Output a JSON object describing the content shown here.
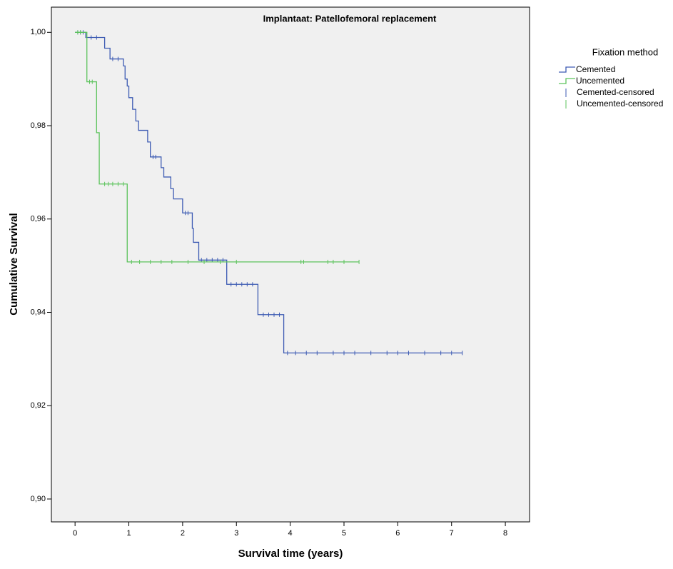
{
  "chart_data": {
    "type": "step",
    "title": "Implantaat: Patellofemoral replacement",
    "x_label": "Survival time (years)",
    "y_label": "Cumulative Survival",
    "legend_title": "Fixation method",
    "xlim": [
      -0.44,
      8.45
    ],
    "xticks": [
      0,
      1,
      2,
      3,
      4,
      5,
      6,
      7,
      8
    ],
    "ylim": [
      0.8951,
      1.0054
    ],
    "yticks": [
      {
        "value": 0.9,
        "label": "0,90"
      },
      {
        "value": 0.92,
        "label": "0,92"
      },
      {
        "value": 0.94,
        "label": "0,94"
      },
      {
        "value": 0.96,
        "label": "0,96"
      },
      {
        "value": 0.98,
        "label": "0,98"
      },
      {
        "value": 1.0,
        "label": "1,00"
      }
    ],
    "series": [
      {
        "name": "Cemented",
        "color": "#3d5bb3",
        "x": [
          0,
          0.2,
          0.55,
          0.65,
          0.9,
          0.93,
          0.97,
          1.0,
          1.07,
          1.13,
          1.18,
          1.35,
          1.4,
          1.6,
          1.65,
          1.78,
          1.83,
          2.0,
          2.18,
          2.2,
          2.3,
          2.82,
          3.4,
          3.88,
          7.2
        ],
        "values": [
          1.0,
          0.9989,
          0.9966,
          0.9943,
          0.9928,
          0.99,
          0.9885,
          0.986,
          0.9835,
          0.981,
          0.979,
          0.9765,
          0.9733,
          0.971,
          0.969,
          0.9665,
          0.9643,
          0.9613,
          0.958,
          0.955,
          0.9512,
          0.946,
          0.9395,
          0.9313,
          0.9313
        ],
        "censored": {
          "name": "Cemented-censored",
          "x": [
            0.05,
            0.1,
            0.15,
            0.3,
            0.4,
            0.7,
            0.8,
            1.45,
            1.5,
            2.05,
            2.1,
            2.35,
            2.45,
            2.55,
            2.65,
            2.75,
            2.9,
            3.0,
            3.1,
            3.2,
            3.3,
            3.5,
            3.6,
            3.7,
            3.8,
            3.95,
            4.1,
            4.3,
            4.5,
            4.8,
            5.0,
            5.2,
            5.5,
            5.8,
            6.0,
            6.2,
            6.5,
            6.8,
            7.0,
            7.2
          ],
          "values": [
            1.0,
            1.0,
            1.0,
            0.9989,
            0.9989,
            0.9943,
            0.9943,
            0.9733,
            0.9733,
            0.9613,
            0.9613,
            0.9512,
            0.9512,
            0.9512,
            0.9512,
            0.9512,
            0.946,
            0.946,
            0.946,
            0.946,
            0.946,
            0.9395,
            0.9395,
            0.9395,
            0.9395,
            0.9313,
            0.9313,
            0.9313,
            0.9313,
            0.9313,
            0.9313,
            0.9313,
            0.9313,
            0.9313,
            0.9313,
            0.9313,
            0.9313,
            0.9313,
            0.9313,
            0.9313
          ]
        }
      },
      {
        "name": "Uncemented",
        "color": "#5cc35c",
        "x": [
          0,
          0.22,
          0.4,
          0.45,
          0.97,
          5.28
        ],
        "values": [
          1.0,
          0.9894,
          0.9785,
          0.9675,
          0.9508,
          0.9508
        ],
        "censored": {
          "name": "Uncemented-censored",
          "x": [
            0.05,
            0.1,
            0.27,
            0.32,
            0.55,
            0.62,
            0.7,
            0.8,
            0.9,
            1.05,
            1.2,
            1.4,
            1.6,
            1.8,
            2.1,
            2.4,
            2.7,
            3.0,
            4.2,
            4.25,
            4.7,
            4.8,
            5.0,
            5.28
          ],
          "values": [
            1.0,
            1.0,
            0.9894,
            0.9894,
            0.9675,
            0.9675,
            0.9675,
            0.9675,
            0.9675,
            0.9508,
            0.9508,
            0.9508,
            0.9508,
            0.9508,
            0.9508,
            0.9508,
            0.9508,
            0.9508,
            0.9508,
            0.9508,
            0.9508,
            0.9508,
            0.9508,
            0.9508
          ]
        }
      }
    ]
  }
}
